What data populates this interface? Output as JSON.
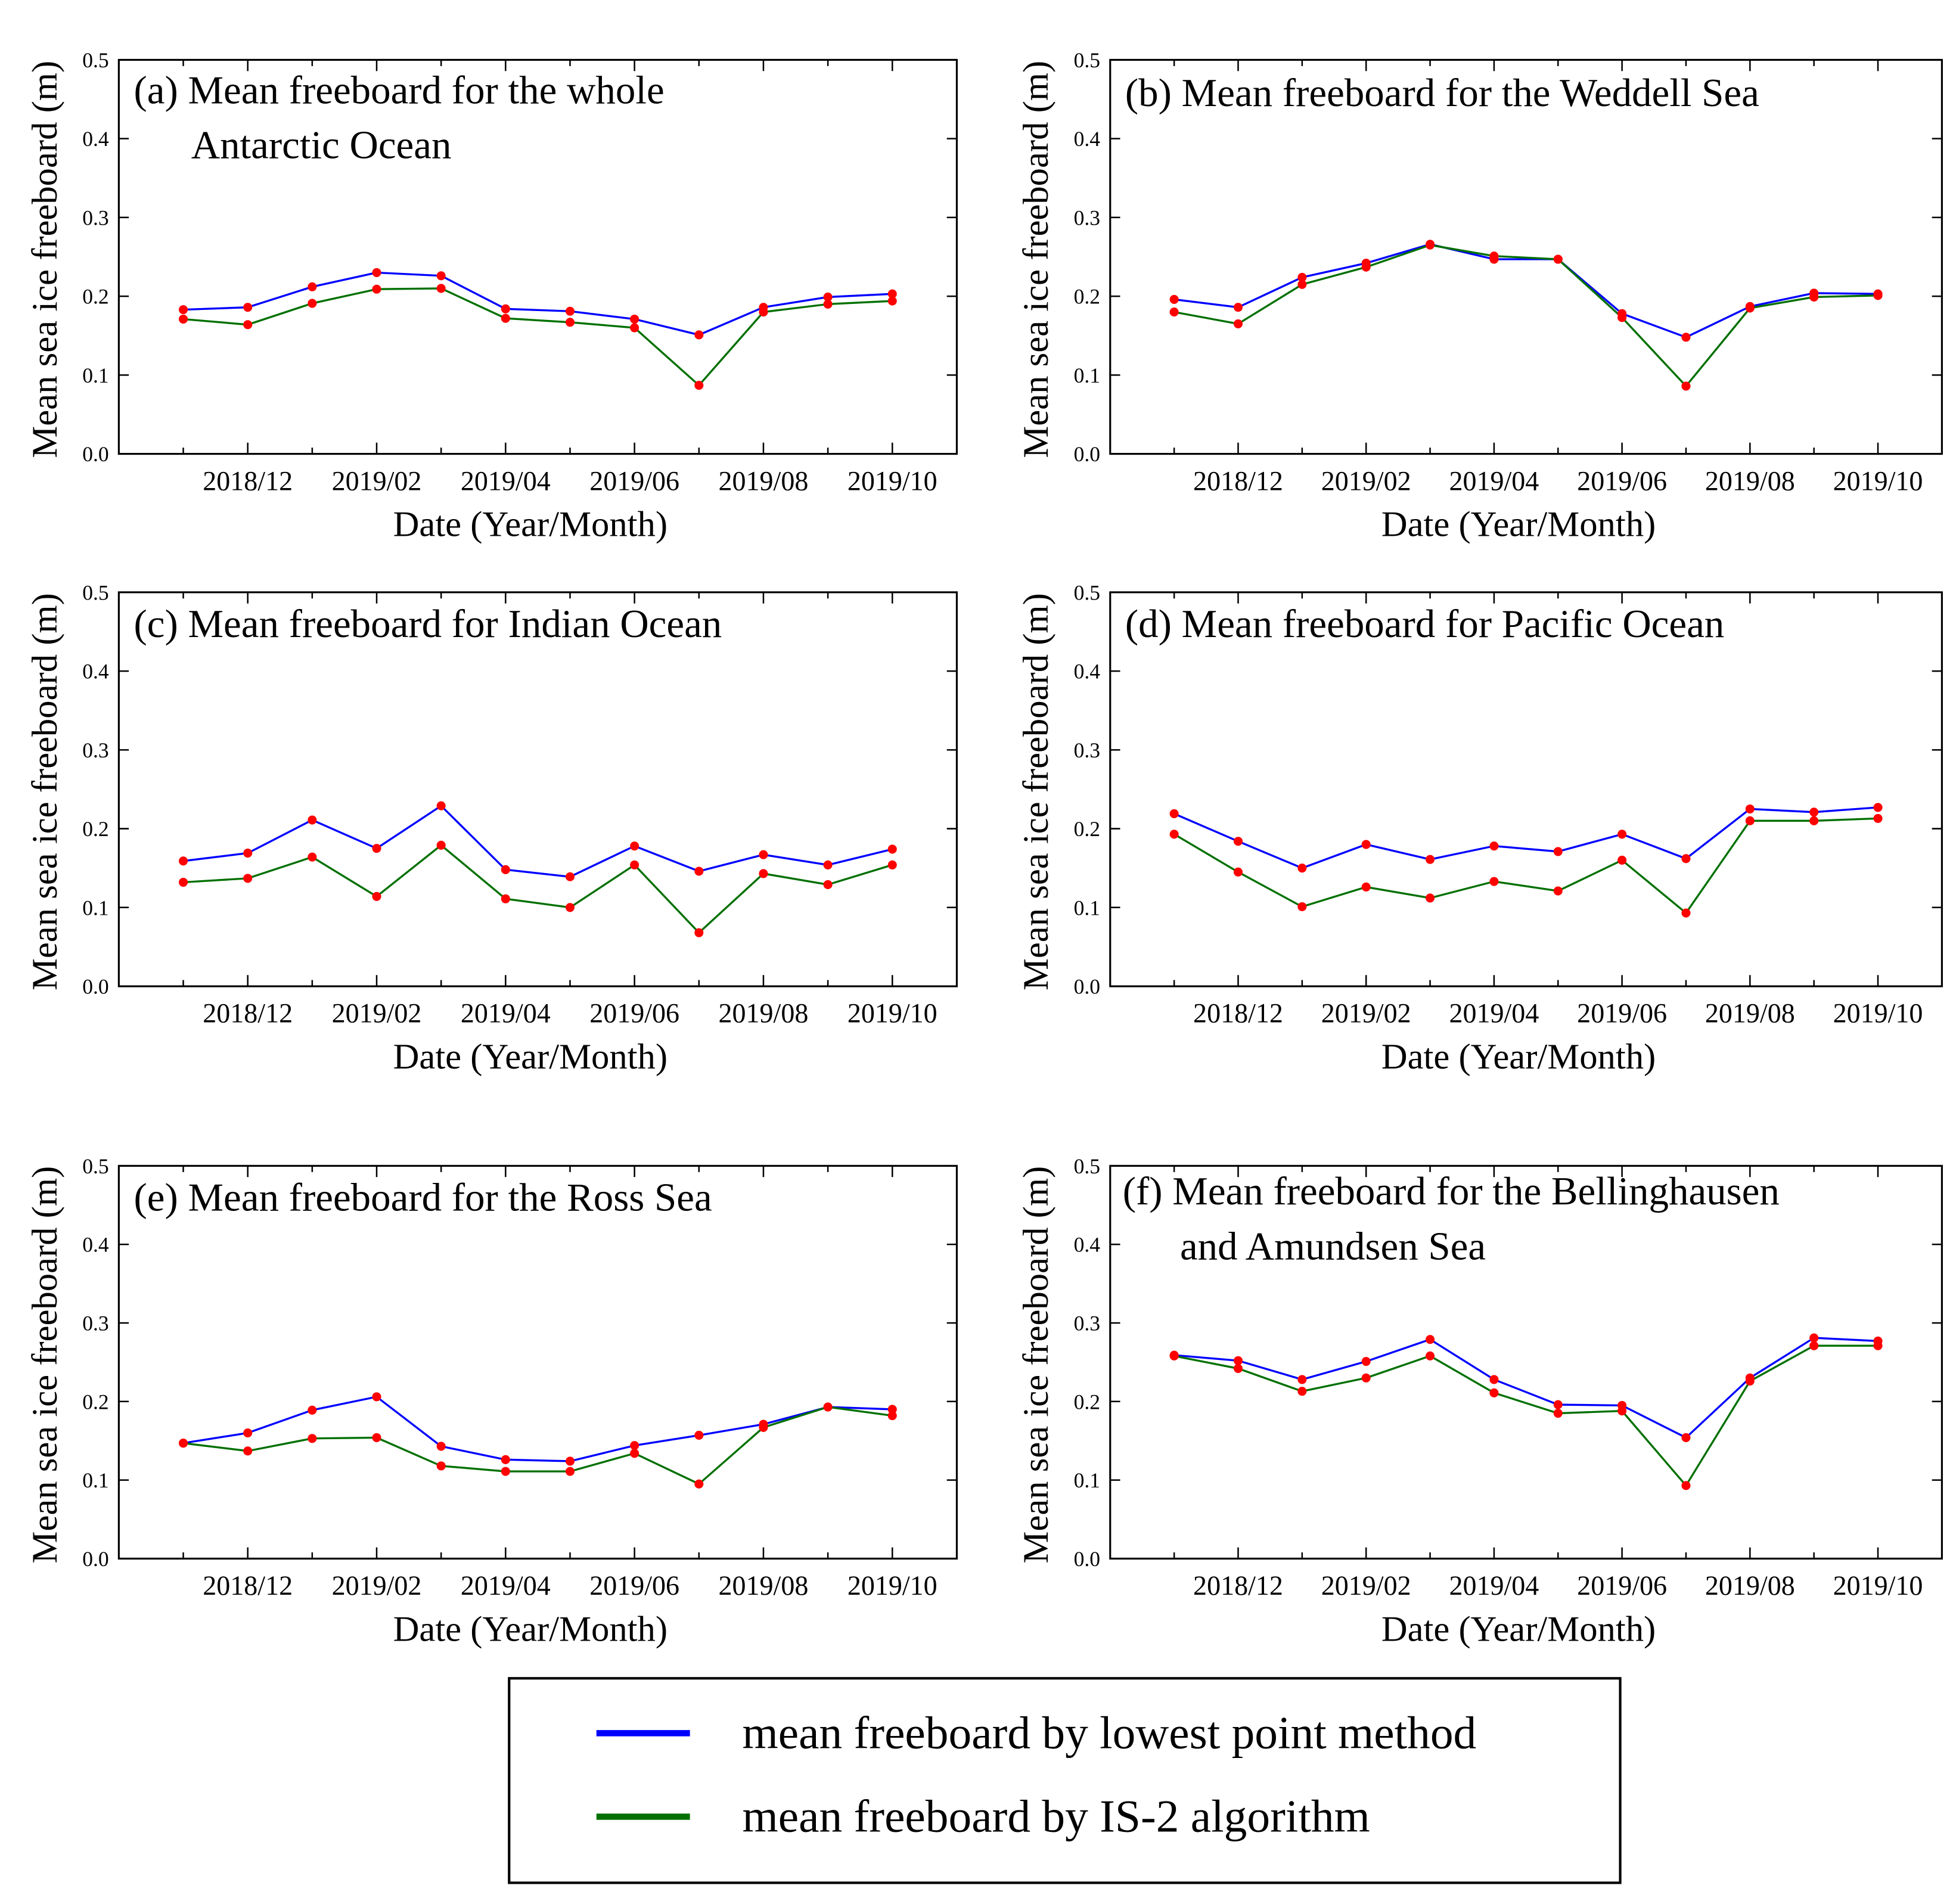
{
  "chart_data": [
    {
      "type": "line",
      "title": [
        "(a) Mean freeboard for the whole",
        "Antarctic Ocean"
      ],
      "xlabel": "Date (Year/Month)",
      "ylabel": "Mean sea ice freeboard (m)",
      "categories": [
        null,
        "2018/12",
        null,
        "2019/02",
        null,
        "2019/04",
        null,
        "2019/06",
        null,
        "2019/08",
        null,
        "2019/10"
      ],
      "ylim": [
        0,
        0.5
      ],
      "yticks": [
        {
          "value": 0,
          "label": "0.0"
        },
        0.1,
        0.2,
        0.3,
        0.4,
        0.5
      ],
      "marker_color": "#ff0000",
      "series": [
        {
          "name": "mean freeboard by lowest point method",
          "color": "#0000ff",
          "values": [
            0.183,
            0.186,
            0.212,
            0.23,
            0.226,
            0.184,
            0.181,
            0.171,
            0.151,
            0.186,
            0.199,
            0.203
          ]
        },
        {
          "name": "mean freeboard by IS-2 algorithm",
          "color": "#007000",
          "values": [
            0.171,
            0.164,
            0.191,
            0.209,
            0.21,
            0.172,
            0.167,
            0.16,
            0.087,
            0.18,
            0.19,
            0.194
          ]
        }
      ]
    },
    {
      "type": "line",
      "title": [
        "(b) Mean freeboard for the Weddell Sea"
      ],
      "xlabel": "Date (Year/Month)",
      "ylabel": "Mean sea ice freeboard (m)",
      "categories": [
        null,
        "2018/12",
        null,
        "2019/02",
        null,
        "2019/04",
        null,
        "2019/06",
        null,
        "2019/08",
        null,
        "2019/10"
      ],
      "ylim": [
        0,
        0.5
      ],
      "yticks": [
        {
          "value": 0,
          "label": "0.0"
        },
        0.1,
        0.2,
        0.3,
        0.4,
        0.5
      ],
      "marker_color": "#ff0000",
      "series": [
        {
          "name": "mean freeboard by lowest point method",
          "color": "#0000ff",
          "values": [
            0.196,
            0.186,
            0.224,
            0.242,
            0.266,
            0.247,
            0.247,
            0.178,
            0.148,
            0.187,
            0.204,
            0.203
          ]
        },
        {
          "name": "mean freeboard by IS-2 algorithm",
          "color": "#007000",
          "values": [
            0.18,
            0.165,
            0.215,
            0.237,
            0.265,
            0.251,
            0.247,
            0.173,
            0.086,
            0.185,
            0.199,
            0.201
          ]
        }
      ]
    },
    {
      "type": "line",
      "title": [
        "(c) Mean freeboard for Indian Ocean"
      ],
      "xlabel": "Date (Year/Month)",
      "ylabel": "Mean sea ice freeboard (m)",
      "categories": [
        null,
        "2018/12",
        null,
        "2019/02",
        null,
        "2019/04",
        null,
        "2019/06",
        null,
        "2019/08",
        null,
        "2019/10"
      ],
      "ylim": [
        0,
        0.5
      ],
      "yticks": [
        {
          "value": 0,
          "label": "0.0"
        },
        0.1,
        0.2,
        0.3,
        0.4,
        0.5
      ],
      "marker_color": "#ff0000",
      "series": [
        {
          "name": "mean freeboard by lowest point method",
          "color": "#0000ff",
          "values": [
            0.159,
            0.169,
            0.211,
            0.175,
            0.229,
            0.148,
            0.139,
            0.178,
            0.146,
            0.167,
            0.154,
            0.174
          ]
        },
        {
          "name": "mean freeboard by IS-2 algorithm",
          "color": "#007000",
          "values": [
            0.132,
            0.137,
            0.164,
            0.114,
            0.179,
            0.111,
            0.1,
            0.154,
            0.068,
            0.143,
            0.129,
            0.154
          ]
        }
      ]
    },
    {
      "type": "line",
      "title": [
        "(d) Mean freeboard for Pacific Ocean"
      ],
      "xlabel": "Date (Year/Month)",
      "ylabel": "Mean sea ice freeboard (m)",
      "categories": [
        null,
        "2018/12",
        null,
        "2019/02",
        null,
        "2019/04",
        null,
        "2019/06",
        null,
        "2019/08",
        null,
        "2019/10"
      ],
      "ylim": [
        0,
        0.5
      ],
      "yticks": [
        {
          "value": 0,
          "label": "0.0"
        },
        0.1,
        0.2,
        0.3,
        0.4,
        0.5
      ],
      "marker_color": "#ff0000",
      "series": [
        {
          "name": "mean freeboard by lowest point method",
          "color": "#0000ff",
          "values": [
            0.219,
            0.184,
            0.15,
            0.18,
            0.161,
            0.178,
            0.171,
            0.193,
            0.162,
            0.225,
            0.221,
            0.227
          ]
        },
        {
          "name": "mean freeboard by IS-2 algorithm",
          "color": "#007000",
          "values": [
            0.193,
            0.145,
            0.101,
            0.126,
            0.112,
            0.133,
            0.121,
            0.16,
            0.093,
            0.21,
            0.21,
            0.213
          ]
        }
      ]
    },
    {
      "type": "line",
      "title": [
        "(e) Mean freeboard for the Ross Sea"
      ],
      "xlabel": "Date (Year/Month)",
      "ylabel": "Mean sea ice freeboard (m)",
      "categories": [
        null,
        "2018/12",
        null,
        "2019/02",
        null,
        "2019/04",
        null,
        "2019/06",
        null,
        "2019/08",
        null,
        "2019/10"
      ],
      "ylim": [
        0,
        0.5
      ],
      "yticks": [
        {
          "value": 0,
          "label": "0.0"
        },
        0.1,
        0.2,
        0.3,
        0.4,
        0.5
      ],
      "marker_color": "#ff0000",
      "series": [
        {
          "name": "mean freeboard by lowest point method",
          "color": "#0000ff",
          "values": [
            0.147,
            0.16,
            0.189,
            0.206,
            0.143,
            0.126,
            0.124,
            0.144,
            0.157,
            0.171,
            0.193,
            0.19
          ]
        },
        {
          "name": "mean freeboard by IS-2 algorithm",
          "color": "#007000",
          "values": [
            0.147,
            0.137,
            0.153,
            0.154,
            0.118,
            0.111,
            0.111,
            0.134,
            0.095,
            0.167,
            0.193,
            0.182
          ]
        }
      ]
    },
    {
      "type": "line",
      "title": [
        "(f) Mean freeboard for the Bellinghausen",
        "and Amundsen Sea"
      ],
      "xlabel": "Date (Year/Month)",
      "ylabel": "Mean sea ice freeboard (m)",
      "categories": [
        null,
        "2018/12",
        null,
        "2019/02",
        null,
        "2019/04",
        null,
        "2019/06",
        null,
        "2019/08",
        null,
        "2019/10"
      ],
      "ylim": [
        0,
        0.5
      ],
      "yticks": [
        {
          "value": 0,
          "label": "0.0"
        },
        0.1,
        0.2,
        0.3,
        0.4,
        0.5
      ],
      "marker_color": "#ff0000",
      "series": [
        {
          "name": "mean freeboard by lowest point method",
          "color": "#0000ff",
          "values": [
            0.259,
            0.252,
            0.228,
            0.251,
            0.279,
            0.228,
            0.196,
            0.195,
            0.154,
            0.23,
            0.281,
            0.277
          ]
        },
        {
          "name": "mean freeboard by IS-2 algorithm",
          "color": "#007000",
          "values": [
            0.258,
            0.242,
            0.213,
            0.23,
            0.258,
            0.211,
            0.185,
            0.188,
            0.093,
            0.226,
            0.271,
            0.271
          ]
        }
      ]
    }
  ]
}
